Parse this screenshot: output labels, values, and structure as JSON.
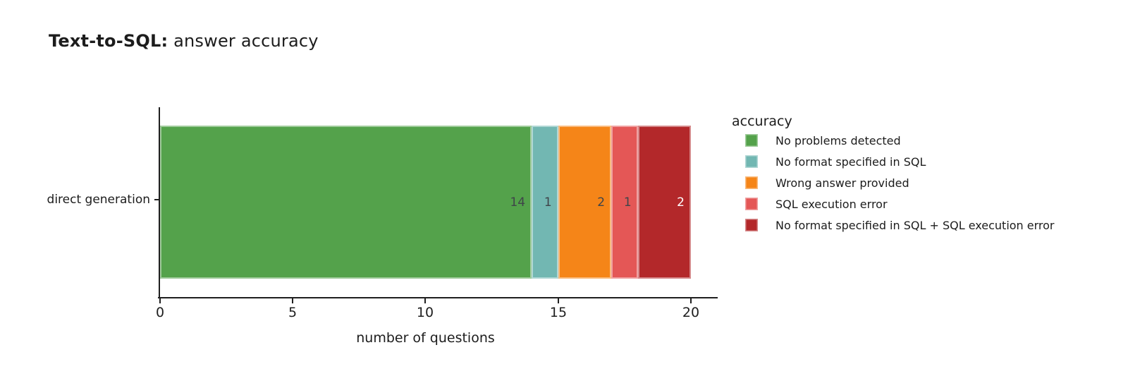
{
  "title": {
    "bold_part": "Text-to-SQL:",
    "regular_part": " answer accuracy"
  },
  "chart_data": {
    "type": "bar",
    "orientation": "horizontal",
    "stacked": true,
    "title": "Text-to-SQL: answer accuracy",
    "categories": [
      "direct generation"
    ],
    "series": [
      {
        "name": "No problems detected",
        "values": [
          14
        ],
        "color": "#54a24b",
        "value_label_color": "#3f4449"
      },
      {
        "name": "No format specified in SQL",
        "values": [
          1
        ],
        "color": "#72b7b2",
        "value_label_color": "#3f4449"
      },
      {
        "name": "Wrong answer provided",
        "values": [
          2
        ],
        "color": "#f58518",
        "value_label_color": "#3f4449"
      },
      {
        "name": "SQL execution error",
        "values": [
          1
        ],
        "color": "#e45756",
        "value_label_color": "#3f4449"
      },
      {
        "name": "No format specified in SQL + SQL execution error",
        "values": [
          2
        ],
        "color": "#b3282a",
        "value_label_color": "#ffffff"
      }
    ],
    "xlabel": "number of questions",
    "ylabel": "",
    "x_ticks": [
      0,
      5,
      10,
      15,
      20
    ],
    "xlim": [
      0,
      21
    ],
    "grid": false,
    "legend_title": "accuracy",
    "legend_position": "right"
  }
}
